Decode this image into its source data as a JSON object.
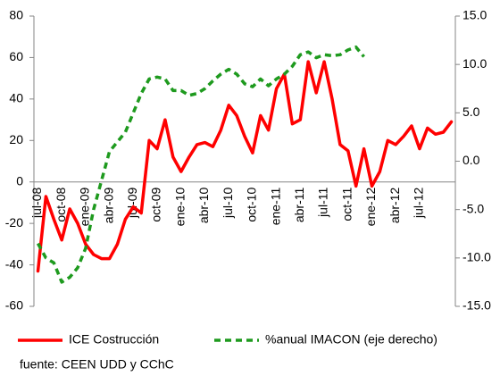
{
  "chart_data": {
    "type": "line",
    "categories": [
      "jul-08",
      null,
      null,
      "oct-08",
      null,
      null,
      "ene-09",
      null,
      null,
      "abr-09",
      null,
      null,
      "jul-09",
      null,
      null,
      "oct-09",
      null,
      null,
      "ene-10",
      null,
      null,
      "abr-10",
      null,
      null,
      "jul-10",
      null,
      null,
      "oct-10",
      null,
      null,
      "ene-11",
      null,
      null,
      "abr-11",
      null,
      null,
      "jul-11",
      null,
      null,
      "oct-11",
      null,
      null,
      "ene-12",
      null,
      null,
      "abr-12",
      null,
      null,
      "jul-12",
      null,
      null,
      null,
      null
    ],
    "series": [
      {
        "name": "ICE Costrucción",
        "color": "#ff0000",
        "axis": "y",
        "values": [
          -43,
          -7,
          -18,
          -28,
          -13,
          -20,
          -30,
          -35,
          -37,
          -37,
          -30,
          -18,
          -12,
          -15,
          20,
          16,
          30,
          12,
          5,
          12,
          18,
          19,
          17,
          25,
          37,
          32,
          22,
          14,
          32,
          25,
          45,
          52,
          28,
          30,
          58,
          43,
          58,
          40,
          18,
          15,
          -2,
          16,
          -2,
          5,
          20,
          18,
          22,
          27,
          16,
          26,
          23,
          24,
          29
        ]
      },
      {
        "name": "%anual IMACON (eje derecho)",
        "color": "#1e9a1e",
        "axis": "y2",
        "values": [
          -8.5,
          -10,
          -10.5,
          -12.5,
          -12,
          -11,
          -9,
          -5,
          -2,
          1,
          2,
          3,
          5,
          7,
          8.5,
          8.7,
          8.5,
          7.3,
          7.3,
          6.8,
          7,
          7.5,
          8.3,
          9,
          9.5,
          9,
          8,
          7.7,
          8.5,
          7.8,
          8.5,
          9,
          9.8,
          11,
          11.3,
          10.7,
          11,
          10.9,
          11,
          11.5,
          11.8,
          10.8,
          null,
          null,
          null,
          null,
          null,
          null,
          null,
          null,
          null,
          null,
          null
        ]
      }
    ],
    "ylim": [
      -60,
      80
    ],
    "yticks": [
      -60,
      -40,
      -20,
      0,
      20,
      40,
      60,
      80
    ],
    "y2lim": [
      -15,
      15
    ],
    "y2ticks": [
      {
        "value": -15,
        "label": "-15.0"
      },
      {
        "value": -10,
        "label": "-10.0"
      },
      {
        "value": -5,
        "label": "-5.0"
      },
      {
        "value": 0,
        "label": "0.0"
      },
      {
        "value": 5,
        "label": "5.0"
      },
      {
        "value": 10,
        "label": "10.0"
      },
      {
        "value": 15,
        "label": "15.0"
      }
    ],
    "source": "fuente: CEEN UDD y CChC"
  }
}
